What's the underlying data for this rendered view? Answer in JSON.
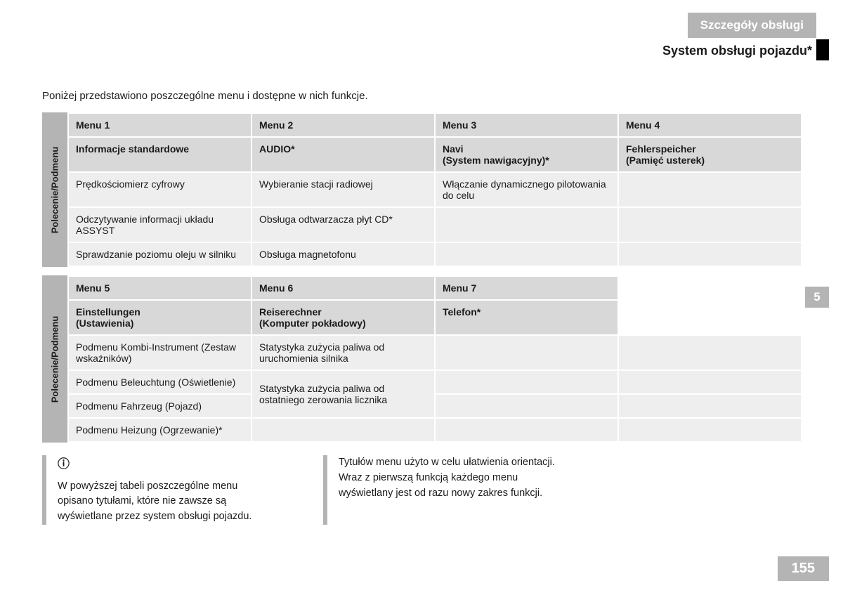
{
  "header": {
    "banner": "Szczegóły obsługi",
    "subtitle": "System obsługi pojazdu*"
  },
  "intro": "Poniżej przedstawiono poszczególne menu i dostępne w nich funkcje.",
  "chapter_tab": "5",
  "page_number": "155",
  "row_label": "Polecenie/Podmenu",
  "table1": {
    "headers": [
      "Menu 1",
      "Menu 2",
      "Menu 3",
      "Menu 4"
    ],
    "subheaders": [
      "Informacje standardowe",
      "AUDIO*",
      "Navi\n(System nawigacyjny)*",
      "Fehlerspeicher\n(Pamięć usterek)"
    ],
    "rows": [
      [
        "Prędkościomierz cyfrowy",
        "Wybieranie stacji radiowej",
        "Włączanie dynamicznego pilotowania do celu",
        ""
      ],
      [
        "Odczytywanie informacji układu ASSYST",
        "Obsługa odtwarzacza płyt CD*",
        "",
        ""
      ],
      [
        "Sprawdzanie poziomu oleju w silniku",
        "Obsługa magnetofonu",
        "",
        ""
      ]
    ]
  },
  "table2": {
    "headers": [
      "Menu 5",
      "Menu 6",
      "Menu 7",
      ""
    ],
    "subheaders": [
      "Einstellungen\n(Ustawienia)",
      "Reiserechner\n(Komputer pokładowy)",
      "Telefon*",
      ""
    ],
    "col1": [
      "Podmenu Kombi-Instrument (Zestaw wskaźników)",
      "Podmenu Beleuchtung (Oświetlenie)",
      "Podmenu Fahrzeug (Pojazd)",
      "Podmenu Heizung (Ogrzewanie)*"
    ],
    "col2": [
      "Statystyka zużycia paliwa od uruchomienia silnika",
      "Statystyka zużycia paliwa od ostatniego zerowania licznika"
    ]
  },
  "notes": {
    "note1": "W powyższej tabeli poszczególne menu opisano tytułami, które nie zawsze są wyświetlane przez system obsługi pojazdu.",
    "note2": "Tytułów menu użyto w celu ułatwienia orientacji. Wraz z pierwszą funkcją każdego menu wyświetlany jest od razu nowy zakres funkcji."
  }
}
